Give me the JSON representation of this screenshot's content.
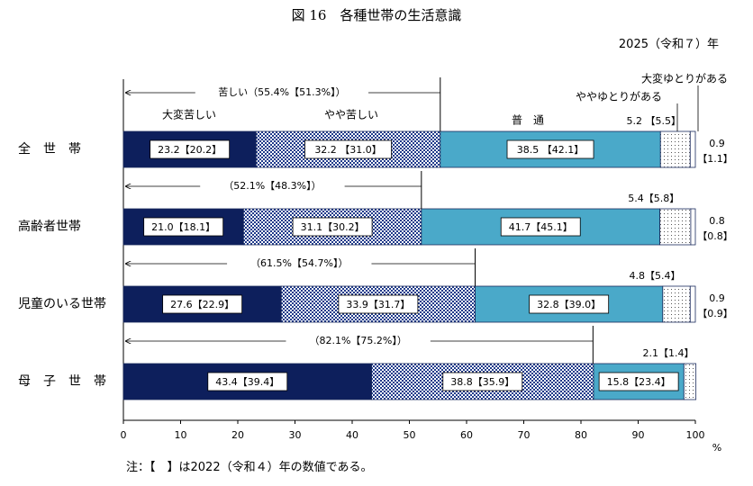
{
  "title": "図 16　各種世帯の生活意識",
  "year_label": "2025（令和７）年",
  "note": "注：【　】は2022（令和４）年の数値である。",
  "chart_data": {
    "type": "bar",
    "orientation": "horizontal",
    "stacked": true,
    "categories": [
      "全　世　帯",
      "高齢者世帯",
      "児童のいる世帯",
      "母　子　世　帯"
    ],
    "series": [
      {
        "name": "大変苦しい",
        "values": [
          23.2,
          21.0,
          27.6,
          43.4
        ],
        "values_2022": [
          20.2,
          18.1,
          22.9,
          39.4
        ],
        "color": "#0d1f5c",
        "pattern": "solid"
      },
      {
        "name": "やや苦しい",
        "values": [
          32.2,
          31.1,
          33.9,
          38.8
        ],
        "values_2022": [
          31.0,
          30.2,
          31.7,
          35.9
        ],
        "color": "#1f3a8a",
        "pattern": "check"
      },
      {
        "name": "普　通",
        "values": [
          38.5,
          41.7,
          32.8,
          15.8
        ],
        "values_2022": [
          42.1,
          45.1,
          39.0,
          23.4
        ],
        "color": "#4aa9c9",
        "pattern": "solid"
      },
      {
        "name": "ややゆとりがある",
        "values": [
          5.2,
          5.4,
          4.8,
          2.1
        ],
        "values_2022": [
          5.5,
          5.8,
          5.4,
          1.4
        ],
        "color": "#ffffff",
        "pattern": "dots"
      },
      {
        "name": "大変ゆとりがある",
        "values": [
          0.9,
          0.8,
          0.9,
          0.0
        ],
        "values_2022": [
          1.1,
          0.8,
          0.9,
          null
        ],
        "color": "#ffffff",
        "pattern": "solid"
      }
    ],
    "labels": {
      "strong": [
        "23.2【20.2】",
        "21.0【18.1】",
        "27.6【22.9】",
        "43.4【39.4】"
      ],
      "some": [
        "32.2 【31.0】",
        "31.1【30.2】",
        "33.9【31.7】",
        "38.8【35.9】"
      ],
      "normal": [
        "38.5 【42.1】",
        "41.7【45.1】",
        "32.8【39.0】",
        "15.8【23.4】"
      ],
      "slight": [
        "5.2 【5.5】",
        "5.4【5.8】",
        "4.8【5.4】",
        "2.1【1.4】"
      ],
      "great_value": [
        "0.9",
        "0.8",
        "0.9",
        ""
      ],
      "great_prev": [
        "【1.1】",
        "【0.8】",
        "【0.9】",
        ""
      ]
    },
    "hardship_totals": [
      "苦しい（55.4%【51.3%】）",
      "（52.1%【48.3%】）",
      "（61.5%【54.7%】）",
      "（82.1%【75.2%】）"
    ],
    "hardship_values": [
      55.4,
      52.1,
      61.5,
      82.1
    ],
    "series_labels": {
      "strong": "大変苦しい",
      "some": "やや苦しい",
      "normal": "普　通",
      "slight": "ややゆとりがある",
      "great": "大変ゆとりがある"
    },
    "xlim": [
      0,
      100
    ],
    "xticks": [
      "0",
      "10",
      "20",
      "30",
      "40",
      "50",
      "60",
      "70",
      "80",
      "90",
      "100"
    ],
    "xunit": "%"
  }
}
